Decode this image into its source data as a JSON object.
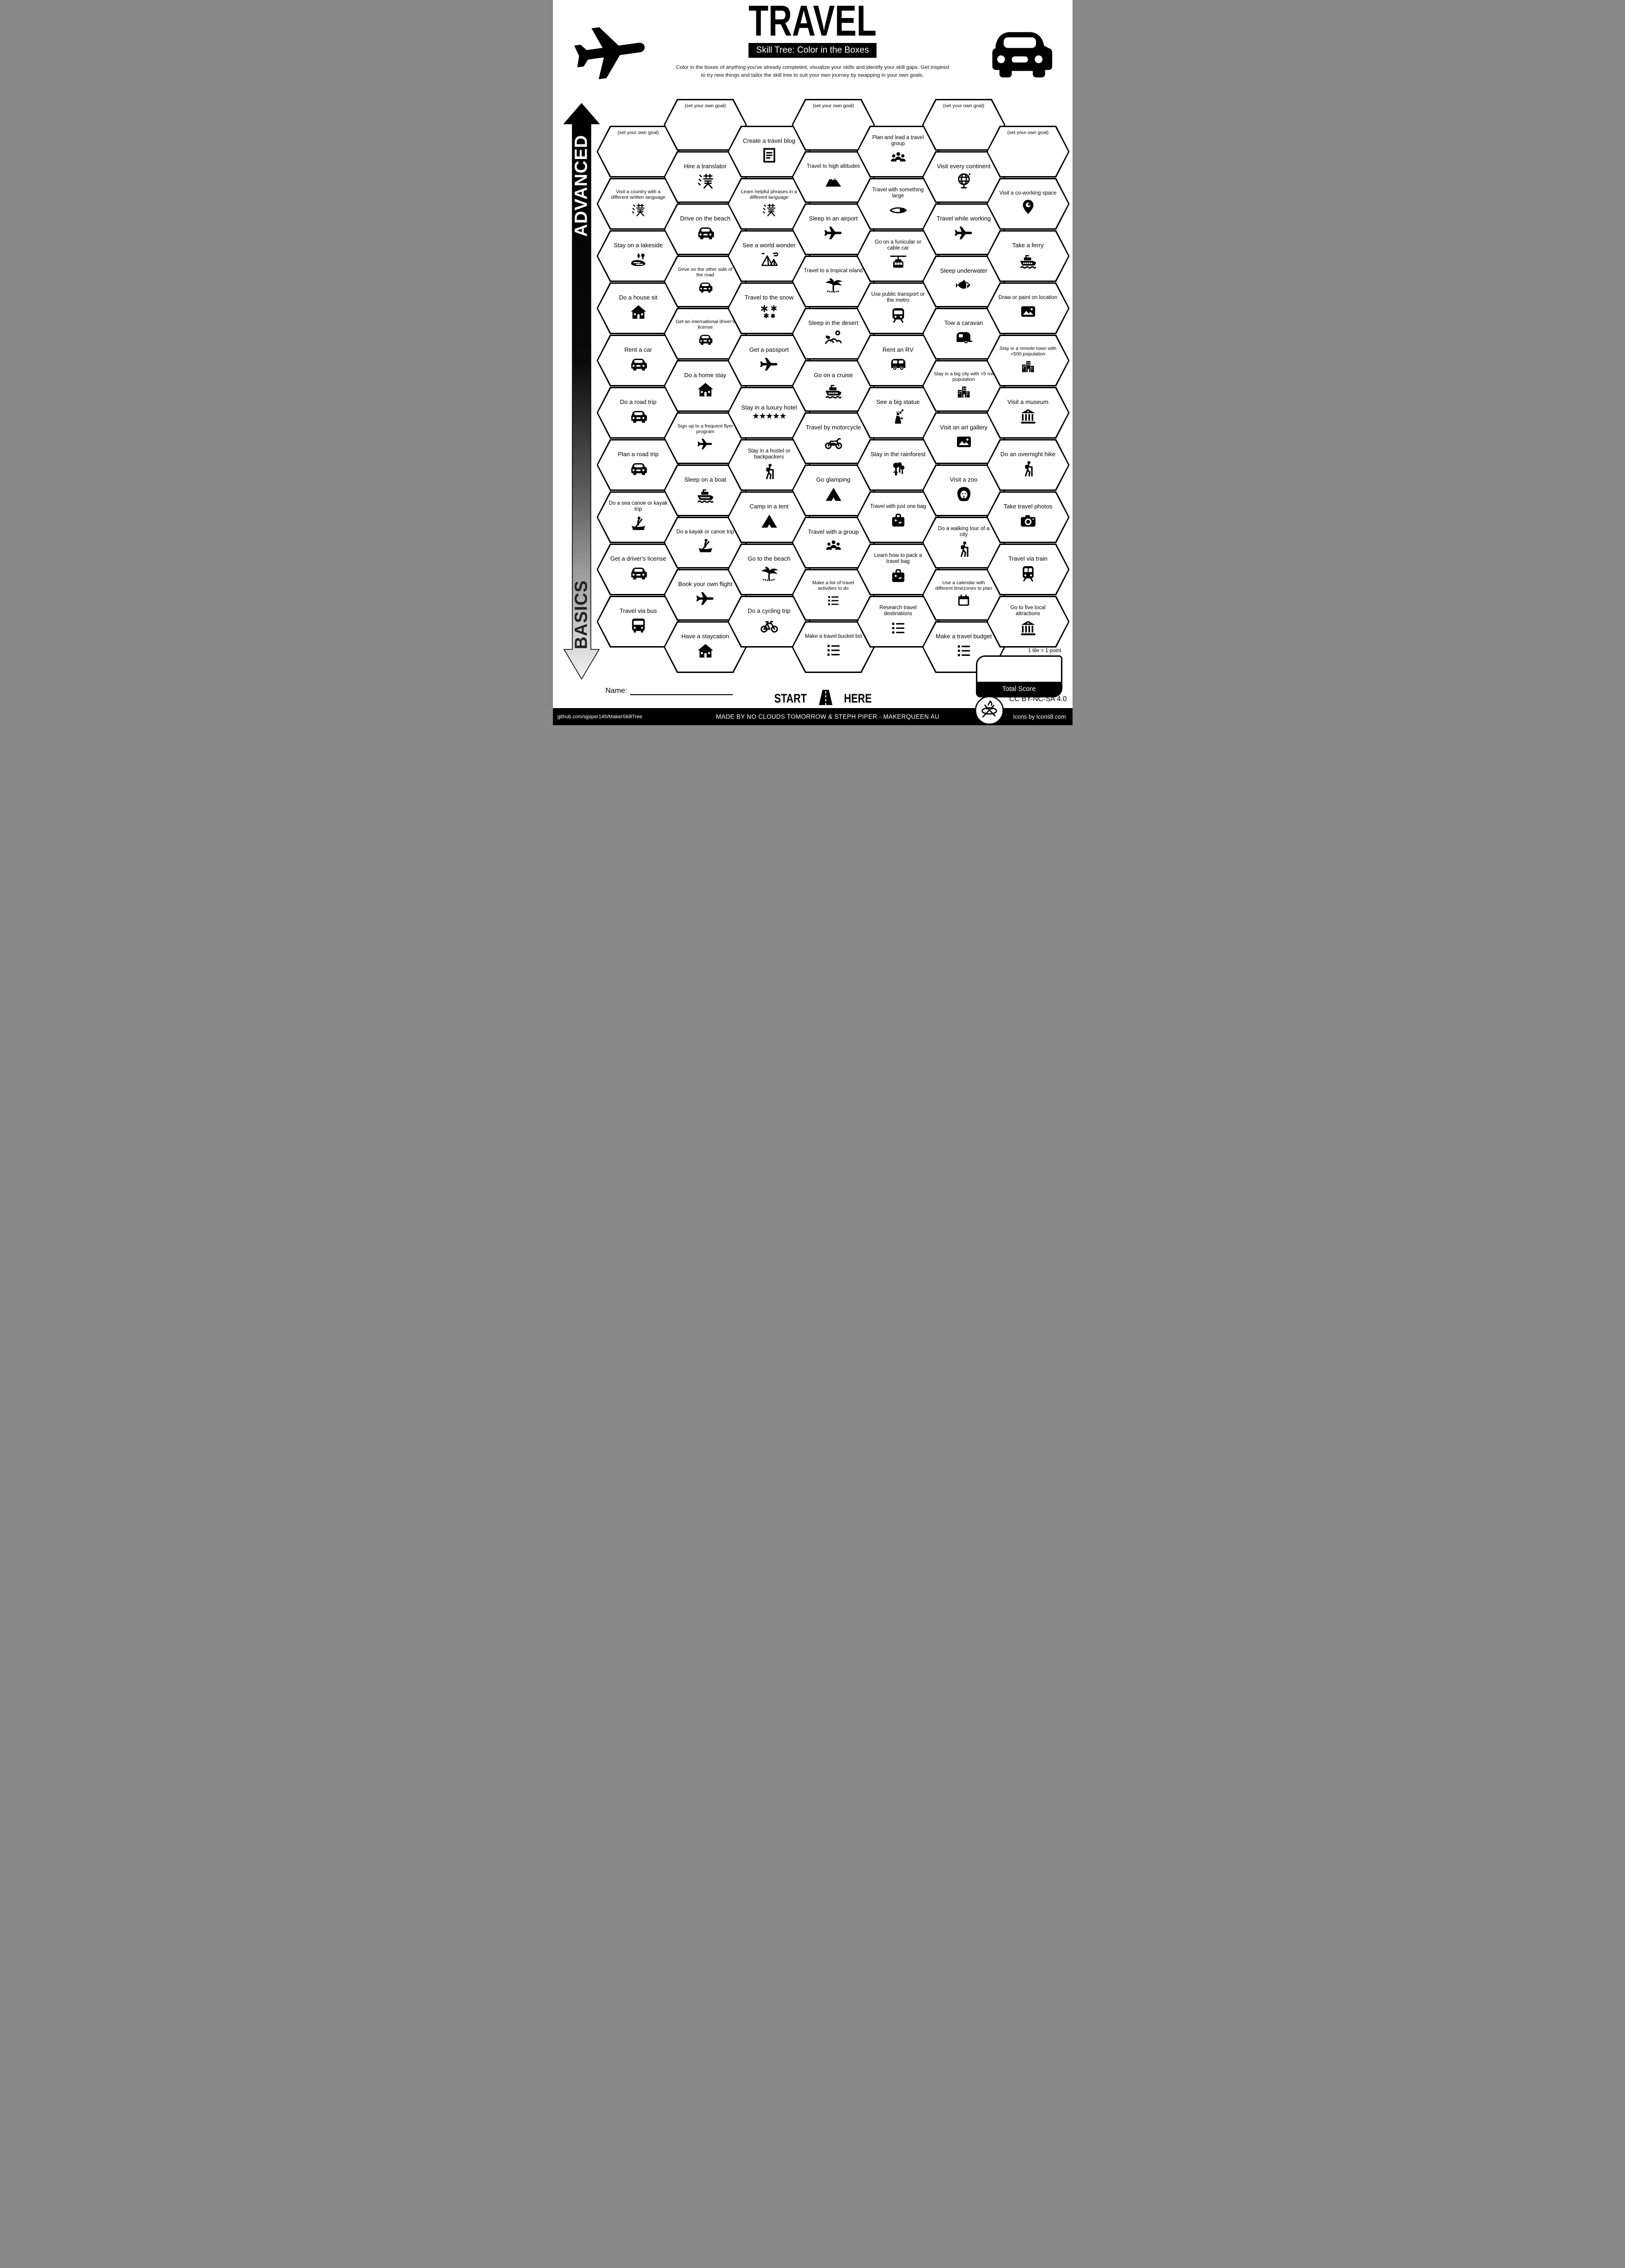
{
  "header": {
    "title": "TRAVEL",
    "subtitle": "Skill Tree: Color in the Boxes",
    "description_line1": "Color in the boxes of anything you've already completed, visualize your skills and identify your skill gaps.  Get inspired",
    "description_line2": "to try new things and tailor the skill tree to suit your own journey by swapping in your own goals.",
    "left_icon": "plane-icon",
    "right_icon": "car-icon"
  },
  "axis": {
    "top_label": "ADVANCED",
    "bottom_label": "BASICS"
  },
  "hexes": [
    {
      "c": 1,
      "r": 1,
      "label": "(set your own goal)",
      "icon": "goal"
    },
    {
      "c": 1,
      "r": 2,
      "label": "Visit a country with a different written language",
      "icon": "kanji"
    },
    {
      "c": 1,
      "r": 3,
      "label": "Stay on a lakeside",
      "icon": "lake"
    },
    {
      "c": 1,
      "r": 4,
      "label": "Do a house sit",
      "icon": "house"
    },
    {
      "c": 1,
      "r": 5,
      "label": "Rent a car",
      "icon": "car"
    },
    {
      "c": 1,
      "r": 6,
      "label": "Do a road trip",
      "icon": "car"
    },
    {
      "c": 1,
      "r": 7,
      "label": "Plan a road trip",
      "icon": "car"
    },
    {
      "c": 1,
      "r": 8,
      "label": "Do a sea canoe or kayak trip",
      "icon": "canoe"
    },
    {
      "c": 1,
      "r": 9,
      "label": "Get a driver's license",
      "icon": "car"
    },
    {
      "c": 1,
      "r": 10,
      "label": "Travel via bus",
      "icon": "bus"
    },
    {
      "c": 2,
      "r": 1,
      "label": "(set your own goal)",
      "icon": "goal"
    },
    {
      "c": 2,
      "r": 2,
      "label": "Hire a translator",
      "icon": "kanji"
    },
    {
      "c": 2,
      "r": 3,
      "label": "Drive on the beach",
      "icon": "car"
    },
    {
      "c": 2,
      "r": 4,
      "label": "Drive on the other side of the road",
      "icon": "car"
    },
    {
      "c": 2,
      "r": 5,
      "label": "Get an international driver's license",
      "icon": "car"
    },
    {
      "c": 2,
      "r": 6,
      "label": "Do a home stay",
      "icon": "house"
    },
    {
      "c": 2,
      "r": 7,
      "label": "Sign up to a frequent flyer program",
      "icon": "plane"
    },
    {
      "c": 2,
      "r": 8,
      "label": "Sleep on a boat",
      "icon": "ship"
    },
    {
      "c": 2,
      "r": 9,
      "label": "Do a kayak or canoe trip",
      "icon": "canoe"
    },
    {
      "c": 2,
      "r": 10,
      "label": "Book your own flight",
      "icon": "plane"
    },
    {
      "c": 2,
      "r": 11,
      "label": "Have a staycation",
      "icon": "house"
    },
    {
      "c": 3,
      "r": 1,
      "label": "Create a travel blog",
      "icon": "blog"
    },
    {
      "c": 3,
      "r": 2,
      "label": "Learn helpful phrases in a different language",
      "icon": "kanji"
    },
    {
      "c": 3,
      "r": 3,
      "label": "See a world wonder",
      "icon": "pyramids"
    },
    {
      "c": 3,
      "r": 4,
      "label": "Travel to the snow",
      "icon": "snow"
    },
    {
      "c": 3,
      "r": 5,
      "label": "Get a passport",
      "icon": "plane"
    },
    {
      "c": 3,
      "r": 6,
      "label": "Stay in a luxury hotel",
      "icon": "stars"
    },
    {
      "c": 3,
      "r": 7,
      "label": "Stay in a hostel or backpackers",
      "icon": "hiker"
    },
    {
      "c": 3,
      "r": 8,
      "label": "Camp in a tent",
      "icon": "tent"
    },
    {
      "c": 3,
      "r": 9,
      "label": "Go to the beach",
      "icon": "palm"
    },
    {
      "c": 3,
      "r": 10,
      "label": "Do a cycling trip",
      "icon": "bicycle"
    },
    {
      "c": 4,
      "r": 1,
      "label": "(set your own goal)",
      "icon": "goal"
    },
    {
      "c": 4,
      "r": 2,
      "label": "Travel to high altitudes",
      "icon": "mountains"
    },
    {
      "c": 4,
      "r": 3,
      "label": "Sleep in an airport",
      "icon": "plane"
    },
    {
      "c": 4,
      "r": 4,
      "label": "Travel to a tropical island",
      "icon": "palm"
    },
    {
      "c": 4,
      "r": 5,
      "label": "Sleep in the desert",
      "icon": "desert"
    },
    {
      "c": 4,
      "r": 6,
      "label": "Go on a cruise",
      "icon": "ship"
    },
    {
      "c": 4,
      "r": 7,
      "label": "Travel by motorcycle",
      "icon": "motorcycle"
    },
    {
      "c": 4,
      "r": 8,
      "label": "Go glamping",
      "icon": "tent"
    },
    {
      "c": 4,
      "r": 9,
      "label": "Travel with a group",
      "icon": "people"
    },
    {
      "c": 4,
      "r": 10,
      "label": "Make a list of travel activities to do",
      "icon": "list"
    },
    {
      "c": 4,
      "r": 11,
      "label": "Make a travel bucket list",
      "icon": "list"
    },
    {
      "c": 5,
      "r": 1,
      "label": "Plan and lead a travel group",
      "icon": "people"
    },
    {
      "c": 5,
      "r": 2,
      "label": "Travel with something large",
      "icon": "surfboard"
    },
    {
      "c": 5,
      "r": 3,
      "label": "Go on a funicular or cable car",
      "icon": "cablecar"
    },
    {
      "c": 5,
      "r": 4,
      "label": "Use public transport or the metro",
      "icon": "metro"
    },
    {
      "c": 5,
      "r": 5,
      "label": "Rent an RV",
      "icon": "rv"
    },
    {
      "c": 5,
      "r": 6,
      "label": "See a big statue",
      "icon": "statue"
    },
    {
      "c": 5,
      "r": 7,
      "label": "Stay in the rainforest",
      "icon": "rainforest"
    },
    {
      "c": 5,
      "r": 8,
      "label": "Travel with just one bag",
      "icon": "bag"
    },
    {
      "c": 5,
      "r": 9,
      "label": "Learn how to pack a travel bag",
      "icon": "bag"
    },
    {
      "c": 5,
      "r": 10,
      "label": "Research travel destinations",
      "icon": "list"
    },
    {
      "c": 6,
      "r": 1,
      "label": "(set your own goal)",
      "icon": "goal"
    },
    {
      "c": 6,
      "r": 2,
      "label": "Visit every continent",
      "icon": "globe"
    },
    {
      "c": 6,
      "r": 3,
      "label": "Travel while working",
      "icon": "plane"
    },
    {
      "c": 6,
      "r": 4,
      "label": "Sleep underwater",
      "icon": "fish"
    },
    {
      "c": 6,
      "r": 5,
      "label": "Tow a caravan",
      "icon": "caravan"
    },
    {
      "c": 6,
      "r": 6,
      "label": "Stay in a big city with >5 mil population",
      "icon": "city"
    },
    {
      "c": 6,
      "r": 7,
      "label": "Visit an art gallery",
      "icon": "picture"
    },
    {
      "c": 6,
      "r": 8,
      "label": "Visit a zoo",
      "icon": "lion"
    },
    {
      "c": 6,
      "r": 9,
      "label": "Do a walking tour of a city",
      "icon": "hiker"
    },
    {
      "c": 6,
      "r": 10,
      "label": "Use a calendar with different timezones to plan",
      "icon": "calendar"
    },
    {
      "c": 6,
      "r": 11,
      "label": "Make a travel budget",
      "icon": "list"
    },
    {
      "c": 7,
      "r": 1,
      "label": "(set your own goal)",
      "icon": "goal"
    },
    {
      "c": 7,
      "r": 2,
      "label": "Visit a co-working space",
      "icon": "pin"
    },
    {
      "c": 7,
      "r": 3,
      "label": "Take a ferry",
      "icon": "ship"
    },
    {
      "c": 7,
      "r": 4,
      "label": "Draw or paint on location",
      "icon": "picture"
    },
    {
      "c": 7,
      "r": 5,
      "label": "Stay in a remote town with <500 population",
      "icon": "city"
    },
    {
      "c": 7,
      "r": 6,
      "label": "Visit a museum",
      "icon": "museum"
    },
    {
      "c": 7,
      "r": 7,
      "label": "Do an overnight hike",
      "icon": "hiker"
    },
    {
      "c": 7,
      "r": 8,
      "label": "Take travel photos",
      "icon": "camera"
    },
    {
      "c": 7,
      "r": 9,
      "label": "Travel via train",
      "icon": "train"
    },
    {
      "c": 7,
      "r": 10,
      "label": "Go to five local attractions",
      "icon": "museum"
    }
  ],
  "start_marker": {
    "left": "START",
    "right": "HERE",
    "icon": "road-icon"
  },
  "scoring": {
    "note": "1 tile = 1 point",
    "box_label": "Total Score"
  },
  "name_field": {
    "label": "Name:"
  },
  "license": "CC BY-NC-SA 4.0",
  "footer": {
    "left": "github.com/sjpiper145/MakerSkillTree",
    "center": "MADE BY NO CLOUDS TOMORROW & STEPH PIPER  -  MAKERQUEEN AU",
    "right": "Icons by Icons8.com"
  }
}
